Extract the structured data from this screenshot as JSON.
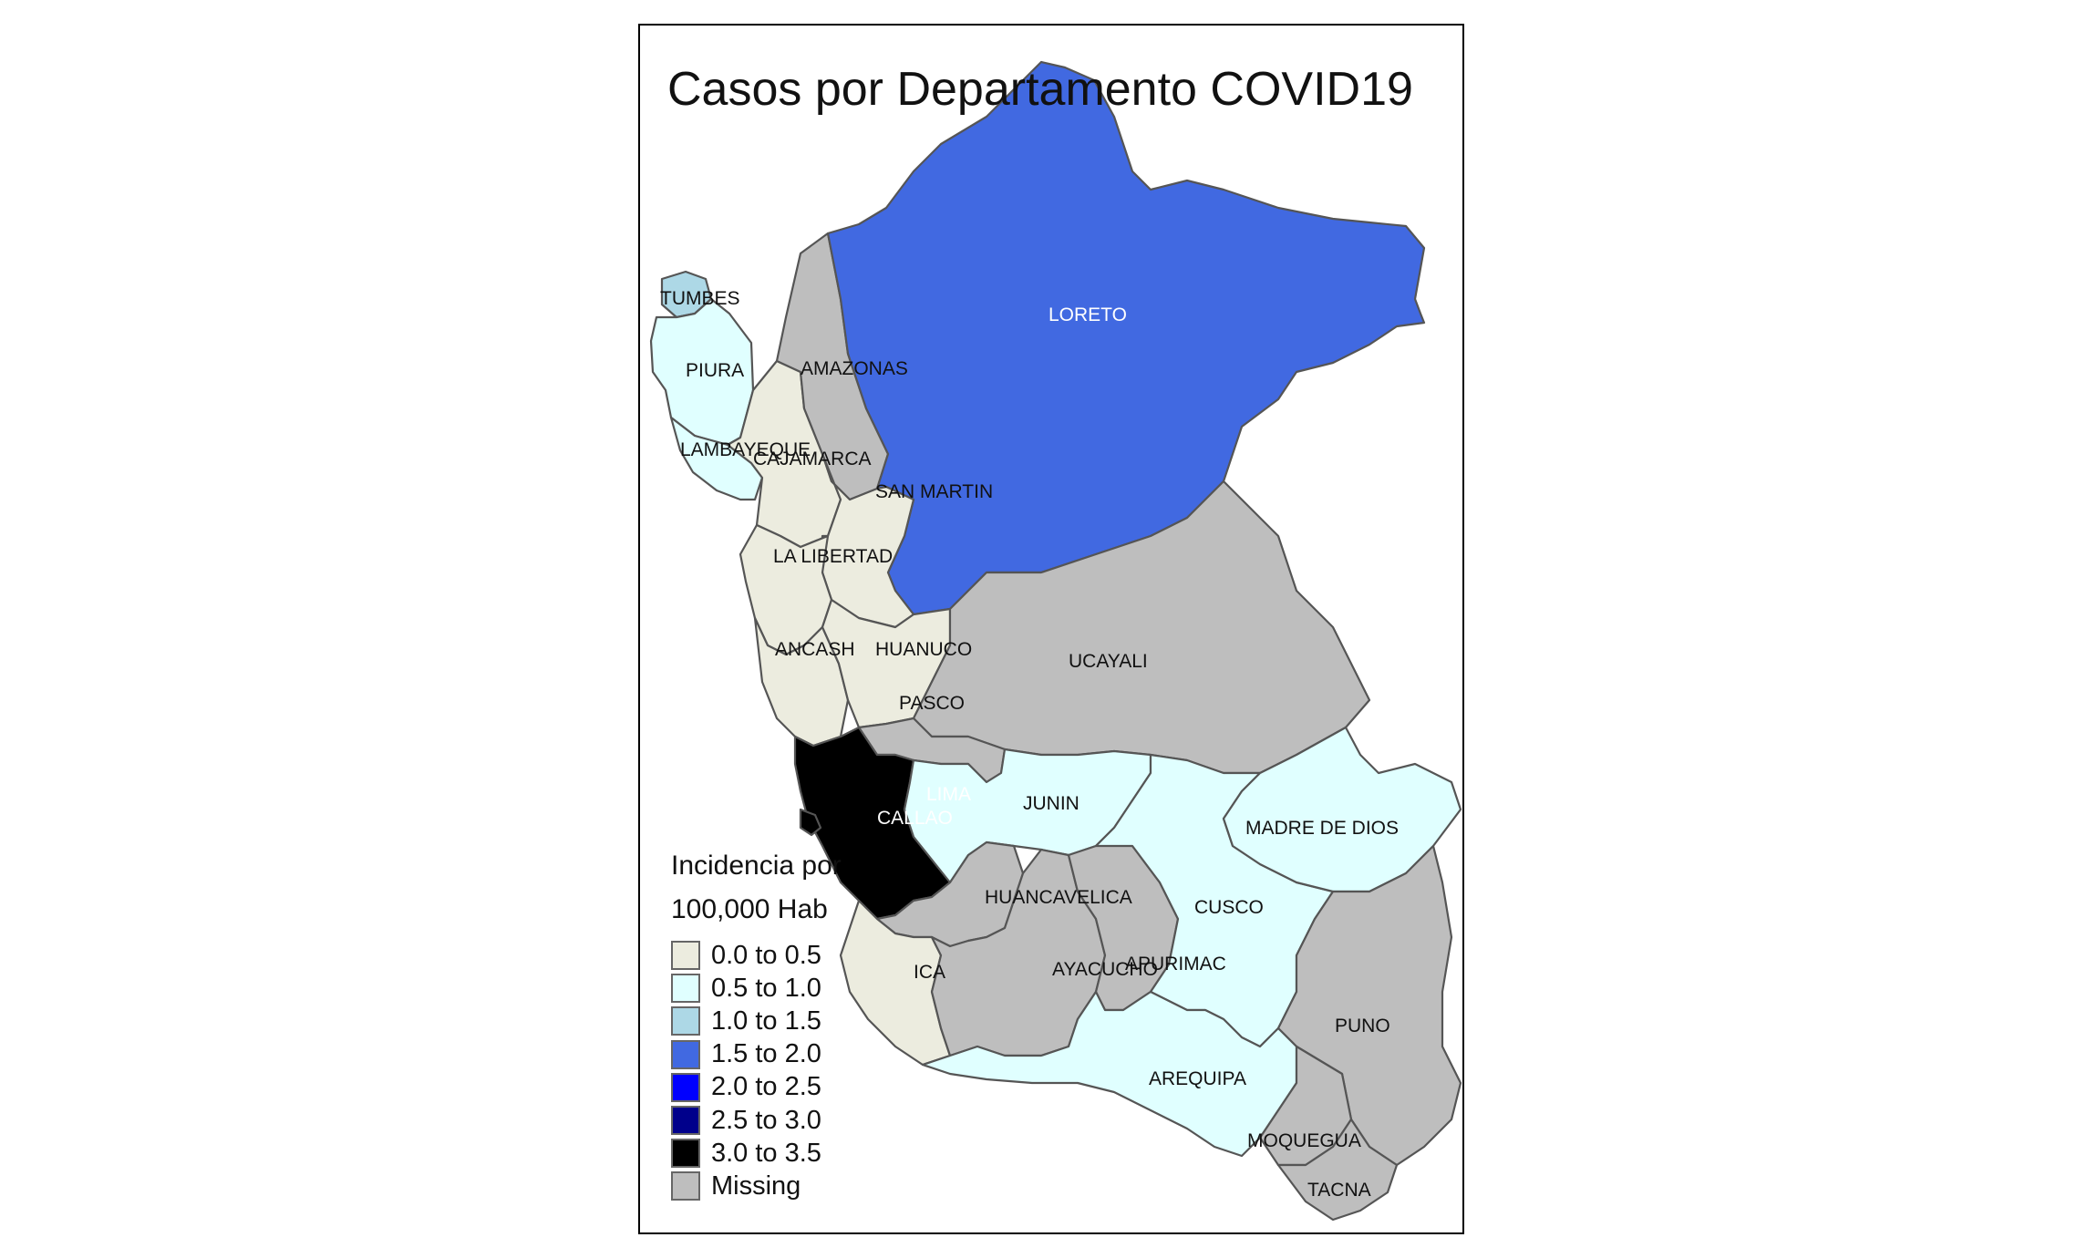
{
  "title": "Casos por Departamento COVID19",
  "legend": {
    "title_line1": "Incidencia por",
    "title_line2": "100,000 Hab",
    "items": [
      {
        "label": "0.0 to 0.5",
        "color": "#ececdf"
      },
      {
        "label": "0.5 to 1.0",
        "color": "#e0ffff"
      },
      {
        "label": "1.0 to 1.5",
        "color": "#add8e6"
      },
      {
        "label": "1.5 to 2.0",
        "color": "#4169e1"
      },
      {
        "label": "2.0 to 2.5",
        "color": "#0000ff"
      },
      {
        "label": "2.5 to 3.0",
        "color": "#00008b"
      },
      {
        "label": "3.0 to 3.5",
        "color": "#000000"
      },
      {
        "label": "Missing",
        "color": "#bebebe"
      }
    ]
  },
  "regions": [
    {
      "name": "TUMBES",
      "class": "1.0 to 1.5"
    },
    {
      "name": "PIURA",
      "class": "0.5 to 1.0"
    },
    {
      "name": "LAMBAYEQUE",
      "class": "0.5 to 1.0"
    },
    {
      "name": "CAJAMARCA",
      "class": "0.0 to 0.5"
    },
    {
      "name": "AMAZONAS",
      "class": "Missing"
    },
    {
      "name": "LORETO",
      "class": "1.5 to 2.0"
    },
    {
      "name": "SAN MARTIN",
      "class": "0.0 to 0.5"
    },
    {
      "name": "LA LIBERTAD",
      "class": "0.0 to 0.5"
    },
    {
      "name": "ANCASH",
      "class": "0.0 to 0.5"
    },
    {
      "name": "HUANUCO",
      "class": "0.0 to 0.5"
    },
    {
      "name": "UCAYALI",
      "class": "Missing"
    },
    {
      "name": "PASCO",
      "class": "Missing"
    },
    {
      "name": "LIMA",
      "class": "3.0 to 3.5"
    },
    {
      "name": "CALLAO",
      "class": "3.0 to 3.5"
    },
    {
      "name": "JUNIN",
      "class": "0.5 to 1.0"
    },
    {
      "name": "HUANCAVELICA",
      "class": "Missing"
    },
    {
      "name": "ICA",
      "class": "0.0 to 0.5"
    },
    {
      "name": "AYACUCHO",
      "class": "Missing"
    },
    {
      "name": "APURIMAC",
      "class": "Missing"
    },
    {
      "name": "CUSCO",
      "class": "0.5 to 1.0"
    },
    {
      "name": "MADRE DE DIOS",
      "class": "0.5 to 1.0"
    },
    {
      "name": "PUNO",
      "class": "Missing"
    },
    {
      "name": "AREQUIPA",
      "class": "0.5 to 1.0"
    },
    {
      "name": "MOQUEGUA",
      "class": "Missing"
    },
    {
      "name": "TACNA",
      "class": "Missing"
    }
  ]
}
